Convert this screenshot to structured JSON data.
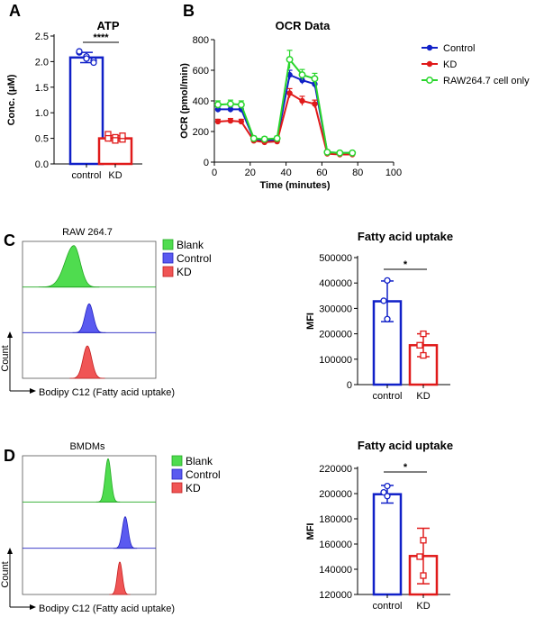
{
  "panels": {
    "A": "A",
    "B": "B",
    "C": "C",
    "D": "D"
  },
  "colors": {
    "control": "#1020c8",
    "kd": "#e01a1a",
    "raw_only": "#29d62c",
    "blank_fill": "#4fdc4f",
    "control_fill": "#5a5af0",
    "kd_fill": "#f05555"
  },
  "flow": {
    "C": {
      "title": "RAW 264.7",
      "legend": [
        "Blank",
        "Control",
        "KD"
      ],
      "xlabel": "Bodipy C12 (Fatty acid uptake)",
      "ylabel": "Count"
    },
    "D": {
      "title": "BMDMs",
      "legend": [
        "Blank",
        "Control",
        "KD"
      ],
      "xlabel": "Bodipy C12 (Fatty acid uptake)",
      "ylabel": "Count"
    }
  },
  "chart_data": [
    {
      "id": "A",
      "type": "bar",
      "title": "ATP",
      "ylabel": "Conc. (μM)",
      "categories": [
        "control",
        "KD"
      ],
      "values": [
        2.08,
        0.5
      ],
      "errors": [
        0.1,
        0.05
      ],
      "points": [
        [
          2.18,
          2.1,
          2.02,
          2.2,
          2.06,
          1.98
        ],
        [
          0.58,
          0.52,
          0.48,
          0.5,
          0.46,
          0.55
        ]
      ],
      "ylim": [
        0,
        2.5
      ],
      "yticks": [
        "0.0",
        "0.5",
        "1.0",
        "1.5",
        "2.0",
        "2.5"
      ],
      "significance": "****"
    },
    {
      "id": "B",
      "type": "line",
      "title": "OCR Data",
      "xlabel": "Time (minutes)",
      "ylabel": "OCR (pmol/min)",
      "xlim": [
        0,
        100
      ],
      "ylim": [
        0,
        800
      ],
      "xticks": [
        "0",
        "20",
        "40",
        "60",
        "80",
        "100"
      ],
      "yticks": [
        "0",
        "200",
        "400",
        "600",
        "800"
      ],
      "x": [
        2,
        9,
        15,
        22,
        28,
        35,
        42,
        49,
        56,
        63,
        70,
        77
      ],
      "series": [
        {
          "name": "Control",
          "values": [
            345,
            345,
            345,
            150,
            140,
            145,
            570,
            535,
            510,
            65,
            60,
            60
          ],
          "errors": [
            20,
            20,
            20,
            15,
            15,
            15,
            30,
            25,
            25,
            10,
            10,
            10
          ]
        },
        {
          "name": "KD",
          "values": [
            265,
            270,
            265,
            140,
            130,
            135,
            450,
            400,
            380,
            55,
            50,
            50
          ],
          "errors": [
            15,
            15,
            15,
            15,
            15,
            15,
            30,
            30,
            25,
            10,
            10,
            10
          ]
        },
        {
          "name": "RAW264.7 cell only",
          "values": [
            375,
            380,
            375,
            155,
            150,
            155,
            670,
            570,
            545,
            65,
            60,
            60
          ],
          "errors": [
            25,
            25,
            25,
            15,
            15,
            15,
            60,
            35,
            35,
            10,
            10,
            10
          ]
        }
      ],
      "legend_position": "right"
    },
    {
      "id": "C",
      "type": "bar",
      "title": "Fatty acid uptake",
      "ylabel": "MFI",
      "categories": [
        "control",
        "KD"
      ],
      "values": [
        328000,
        155000
      ],
      "errors": [
        80000,
        45000
      ],
      "points": [
        [
          410000,
          330000,
          258000
        ],
        [
          200000,
          155000,
          115000
        ]
      ],
      "ylim": [
        0,
        500000
      ],
      "yticks": [
        "0",
        "100000",
        "200000",
        "300000",
        "400000",
        "500000"
      ],
      "significance": "*"
    },
    {
      "id": "D",
      "type": "bar",
      "title": "Fatty acid uptake",
      "ylabel": "MFI",
      "categories": [
        "control",
        "KD"
      ],
      "values": [
        199500,
        150500
      ],
      "errors": [
        7000,
        22000
      ],
      "points": [
        [
          206000,
          201000,
          198000
        ],
        [
          163000,
          150000,
          135000
        ]
      ],
      "ylim": [
        120000,
        220000
      ],
      "yticks": [
        "120000",
        "140000",
        "160000",
        "180000",
        "200000",
        "220000"
      ],
      "significance": "*"
    }
  ]
}
